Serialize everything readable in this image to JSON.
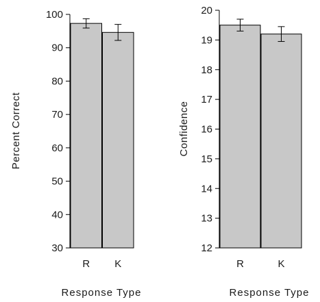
{
  "chart_data": [
    {
      "type": "bar",
      "categories": [
        "R",
        "K"
      ],
      "values": [
        97.3,
        94.6
      ],
      "error": [
        1.4,
        2.4
      ],
      "ylim": [
        30,
        100
      ],
      "yticks": [
        30,
        40,
        50,
        60,
        70,
        80,
        90,
        100
      ],
      "ylabel": "Percent Correct",
      "xlabel": "Response Type",
      "bar_color": "#c8c8c8"
    },
    {
      "type": "bar",
      "categories": [
        "R",
        "K"
      ],
      "values": [
        19.5,
        19.2
      ],
      "error": [
        0.2,
        0.25
      ],
      "ylim": [
        12,
        20
      ],
      "yticks": [
        12,
        13,
        14,
        15,
        16,
        17,
        18,
        19,
        20
      ],
      "ylabel": "Confidence",
      "xlabel": "Response Type",
      "bar_color": "#c8c8c8"
    }
  ]
}
